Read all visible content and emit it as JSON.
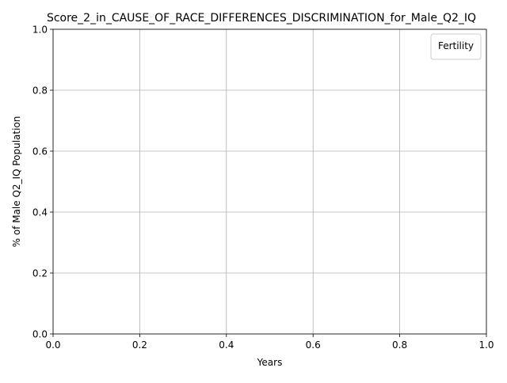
{
  "chart_data": {
    "type": "line",
    "title": "Score_2_in_CAUSE_OF_RACE_DIFFERENCES_DISCRIMINATION_for_Male_Q2_IQ",
    "xlabel": "Years",
    "ylabel": "% of Male Q2_IQ Population",
    "xlim": [
      0.0,
      1.0
    ],
    "ylim": [
      0.0,
      1.0
    ],
    "x_ticks": [
      "0.0",
      "0.2",
      "0.4",
      "0.6",
      "0.8",
      "1.0"
    ],
    "y_ticks": [
      "0.0",
      "0.2",
      "0.4",
      "0.6",
      "0.8",
      "1.0"
    ],
    "grid": true,
    "legend": {
      "title": "Fertility",
      "placement": "upper-right",
      "entries": []
    },
    "series": []
  },
  "colors": {
    "axis": "#000000",
    "grid": "#b0b0b0",
    "background": "#ffffff"
  }
}
